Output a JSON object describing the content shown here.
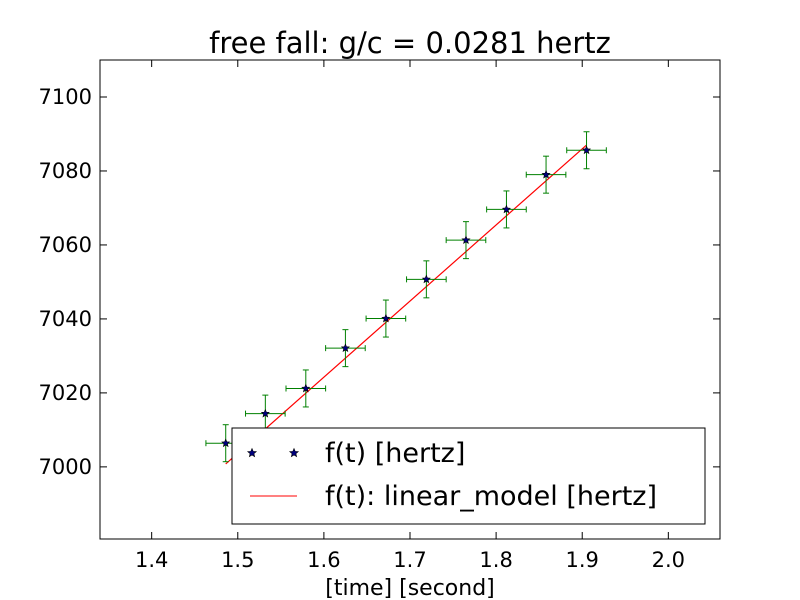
{
  "chart_data": {
    "type": "scatter",
    "title": "free fall: g/c = 0.0281 hertz",
    "xlabel": "[time] [second]",
    "ylabel": "",
    "xlim": [
      1.34,
      2.06
    ],
    "ylim": [
      6980.5,
      7110
    ],
    "xticks": [
      "1.4",
      "1.5",
      "1.6",
      "1.7",
      "1.8",
      "1.9",
      "2.0"
    ],
    "yticks": [
      "7000",
      "7020",
      "7040",
      "7060",
      "7080",
      "7100"
    ],
    "grid": false,
    "legend_position": "lower-right",
    "series": [
      {
        "name": "f(t) [hertz]",
        "kind": "points_with_error_bars",
        "marker": "star",
        "marker_color": "#000080",
        "errorbar_color": "#008000",
        "x": [
          1.486,
          1.532,
          1.579,
          1.625,
          1.672,
          1.719,
          1.765,
          1.812,
          1.858,
          1.905
        ],
        "y": [
          7006.4,
          7014.4,
          7021.2,
          7032.1,
          7040.1,
          7050.7,
          7061.3,
          7069.6,
          7079.0,
          7085.6
        ],
        "x_err": 0.023,
        "y_err": 5
      },
      {
        "name": "f(t): linear_model [hertz]",
        "kind": "line",
        "color": "#ff0000",
        "x": [
          1.486,
          1.905
        ],
        "y": [
          7000.8,
          7087.0
        ]
      }
    ]
  }
}
